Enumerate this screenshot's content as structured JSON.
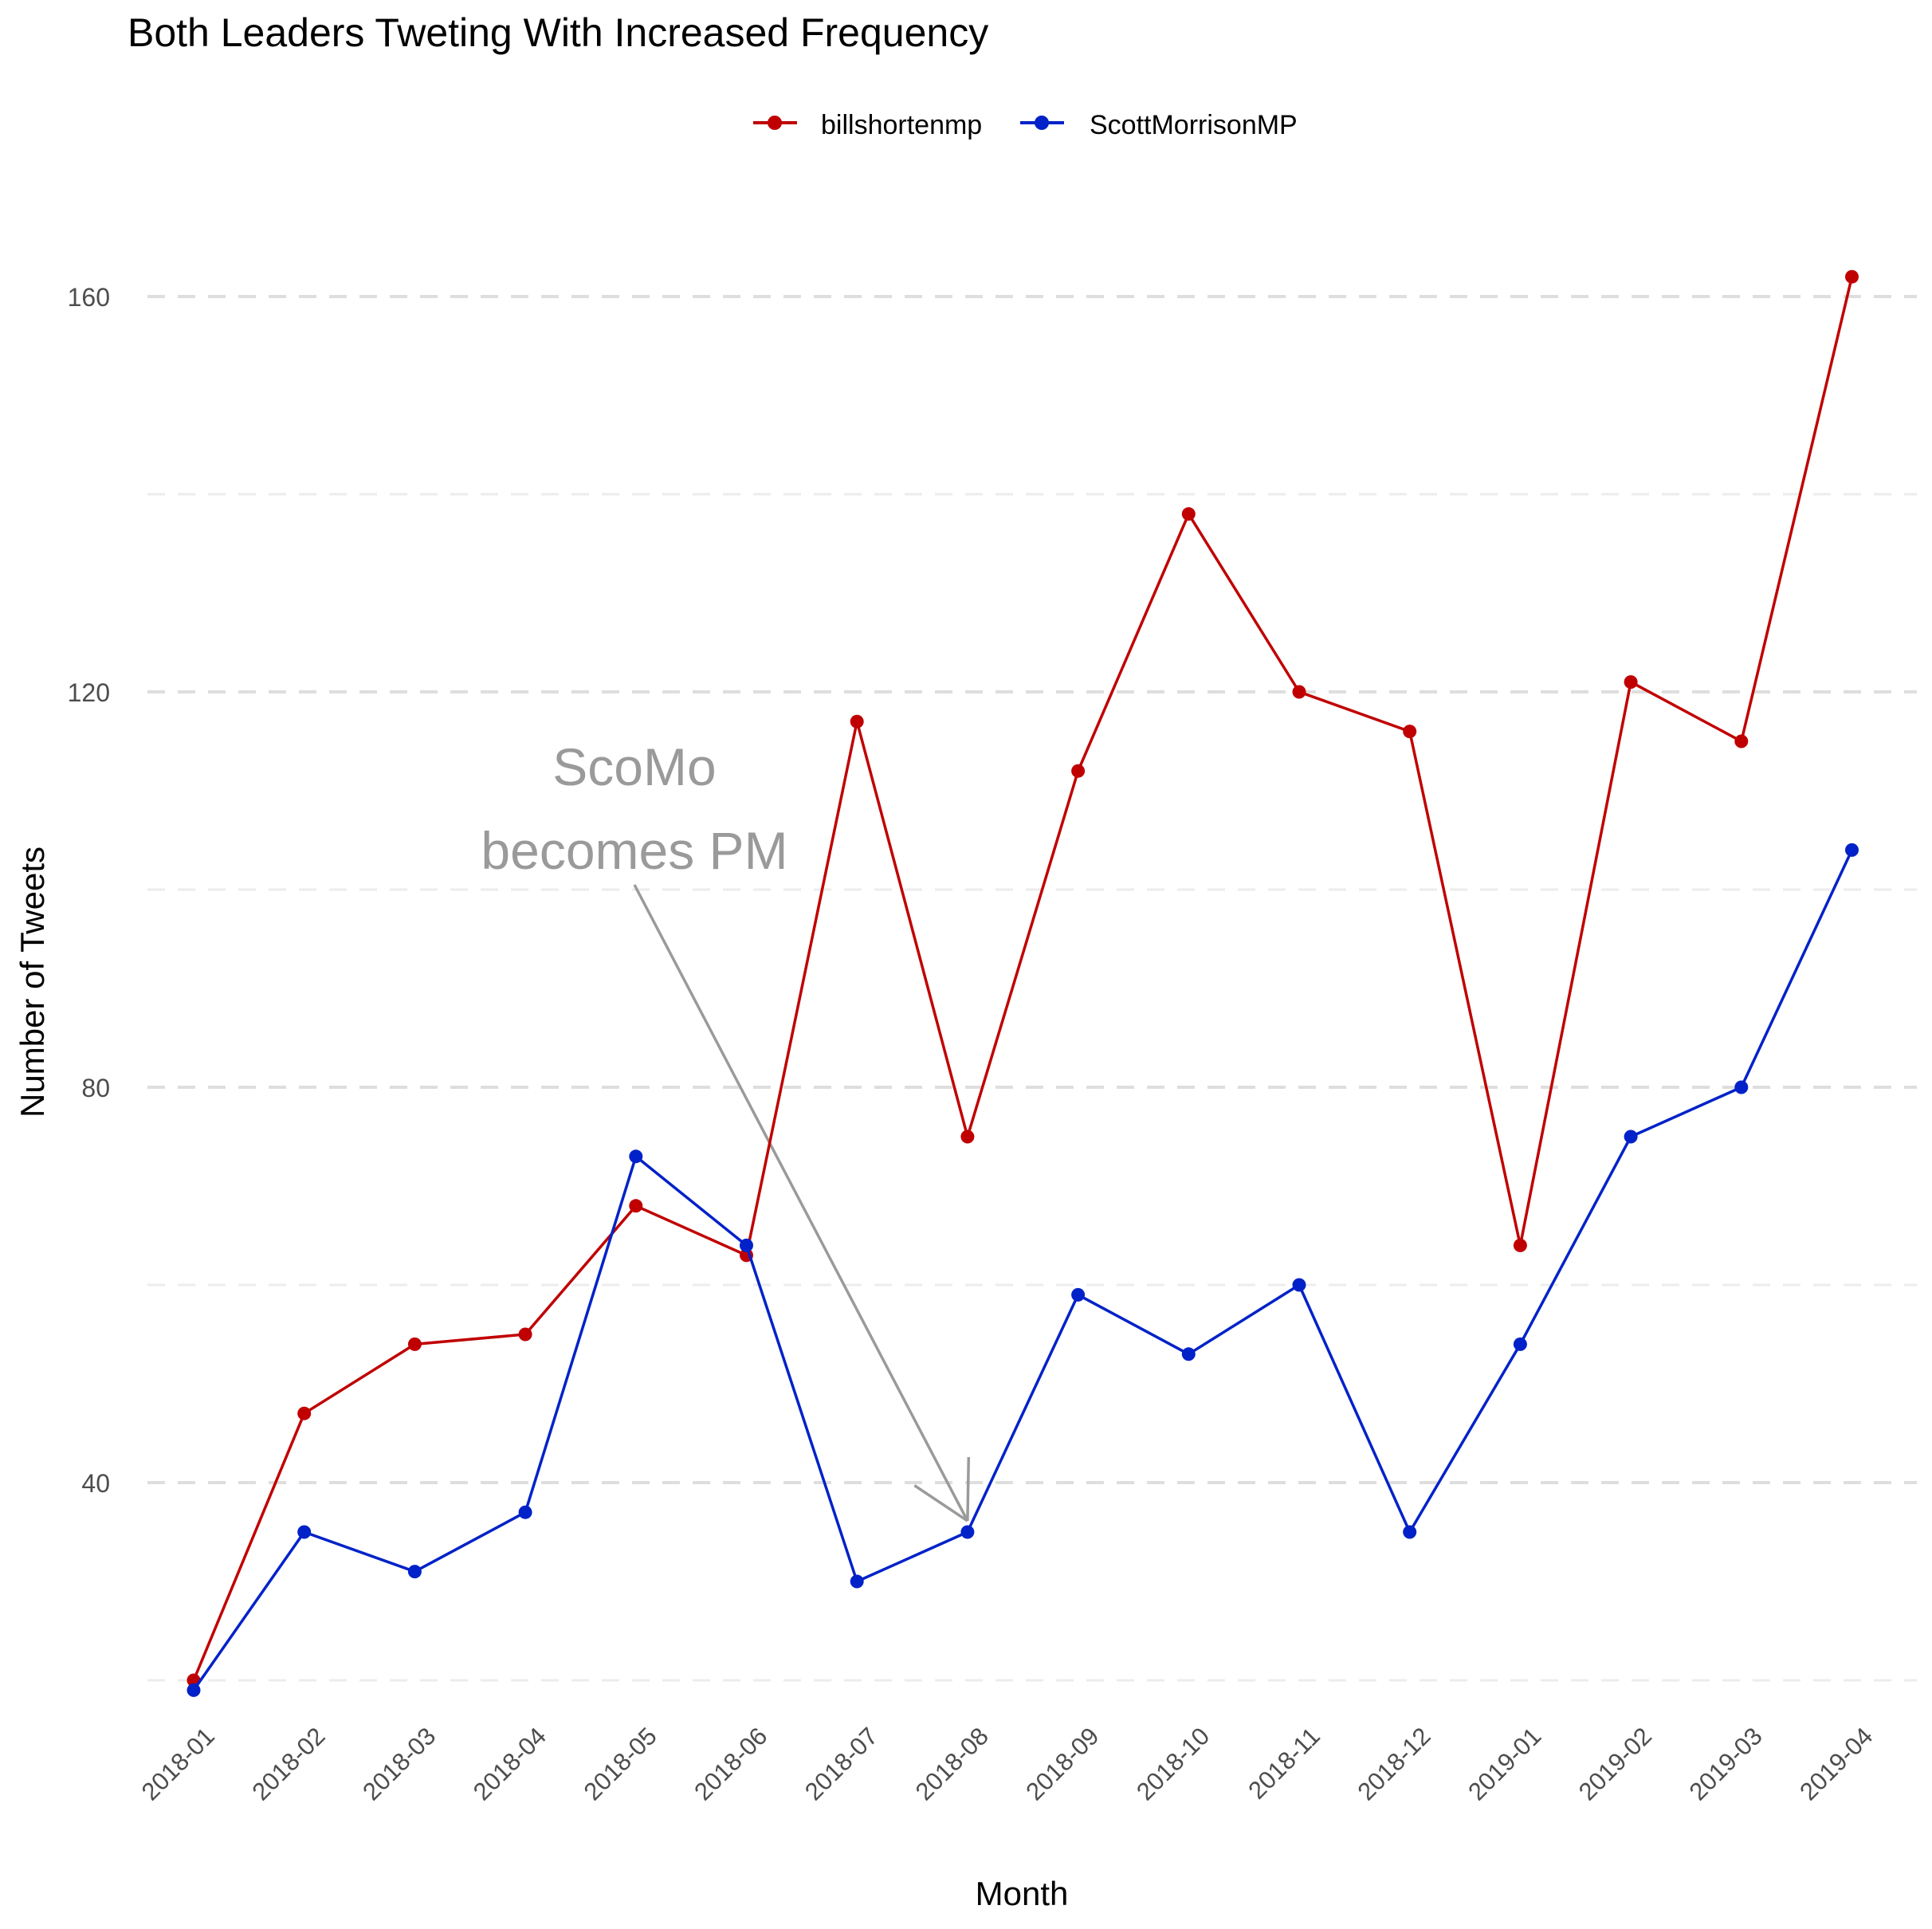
{
  "chart_data": {
    "type": "line",
    "title": "Both Leaders Tweting With Increased Frequency",
    "xlabel": "Month",
    "ylabel": "Number of Tweets",
    "categories": [
      "2018-01",
      "2018-02",
      "2018-03",
      "2018-04",
      "2018-05",
      "2018-06",
      "2018-07",
      "2018-08",
      "2018-09",
      "2018-10",
      "2018-11",
      "2018-12",
      "2019-01",
      "2019-02",
      "2019-03",
      "2019-04"
    ],
    "y_ticks": [
      40,
      80,
      120,
      160
    ],
    "ylim": [
      18,
      168
    ],
    "grid": "horizontal dashed",
    "legend_position": "top",
    "series": [
      {
        "name": "billshortenmp",
        "color": "#c00000",
        "values": [
          20,
          47,
          54,
          55,
          68,
          63,
          117,
          75,
          112,
          138,
          120,
          116,
          64,
          121,
          115,
          162
        ]
      },
      {
        "name": "ScottMorrisonMP",
        "color": "#0022c8",
        "values": [
          19,
          35,
          31,
          37,
          73,
          64,
          30,
          35,
          59,
          53,
          60,
          35,
          54,
          75,
          80,
          104
        ]
      }
    ],
    "annotation": {
      "lines": [
        "ScoMo",
        "becomes PM"
      ],
      "points_to": {
        "x": "2018-08",
        "y": 35
      },
      "color": "#9a9a9a"
    }
  }
}
